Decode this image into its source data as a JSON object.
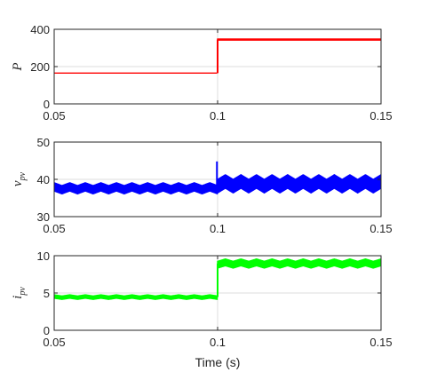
{
  "chart_data": [
    {
      "type": "line",
      "ylabel_main": "P",
      "ylabel_sub": "",
      "xlim": [
        0.05,
        0.15
      ],
      "ylim": [
        0,
        400
      ],
      "x_ticks": [
        "0.05",
        "0.1",
        "0.15"
      ],
      "y_ticks": [
        "0",
        "200",
        "400"
      ],
      "grid": true,
      "color": "#ff0000",
      "series": [
        {
          "x": [
            0.05,
            0.1,
            0.1,
            0.15
          ],
          "values": [
            165,
            165,
            345,
            345
          ],
          "ripple": [
            0,
            0,
            6,
            6
          ],
          "ripple_cycles": 0
        }
      ]
    },
    {
      "type": "line",
      "ylabel_main": "v",
      "ylabel_sub": "pv",
      "xlim": [
        0.05,
        0.15
      ],
      "ylim": [
        30,
        50
      ],
      "x_ticks": [
        "0.05",
        "0.1",
        "0.15"
      ],
      "y_ticks": [
        "30",
        "40",
        "50"
      ],
      "grid": true,
      "color": "#0000ff",
      "series": [
        {
          "x": [
            0.05,
            0.1,
            0.1,
            0.15
          ],
          "values": [
            37.6,
            37.6,
            38.8,
            38.8
          ],
          "ripple": [
            2.2,
            2.2,
            3.6,
            3.6
          ],
          "ripple_cycles": 21,
          "spike": {
            "x": 0.0998,
            "value": 44.8
          }
        }
      ]
    },
    {
      "type": "line",
      "ylabel_main": "i",
      "ylabel_sub": "pv",
      "xlim": [
        0.05,
        0.15
      ],
      "ylim": [
        0,
        10
      ],
      "x_ticks": [
        "0.05",
        "0.1",
        "0.15"
      ],
      "y_ticks": [
        "0",
        "5",
        "10"
      ],
      "grid": true,
      "color": "#00ff00",
      "series": [
        {
          "x": [
            0.05,
            0.1,
            0.1,
            0.15
          ],
          "values": [
            4.45,
            4.45,
            8.95,
            8.95
          ],
          "ripple": [
            0.45,
            0.45,
            0.9,
            0.9
          ],
          "ripple_cycles": 21
        }
      ]
    }
  ],
  "xlabel": "Time (s)"
}
